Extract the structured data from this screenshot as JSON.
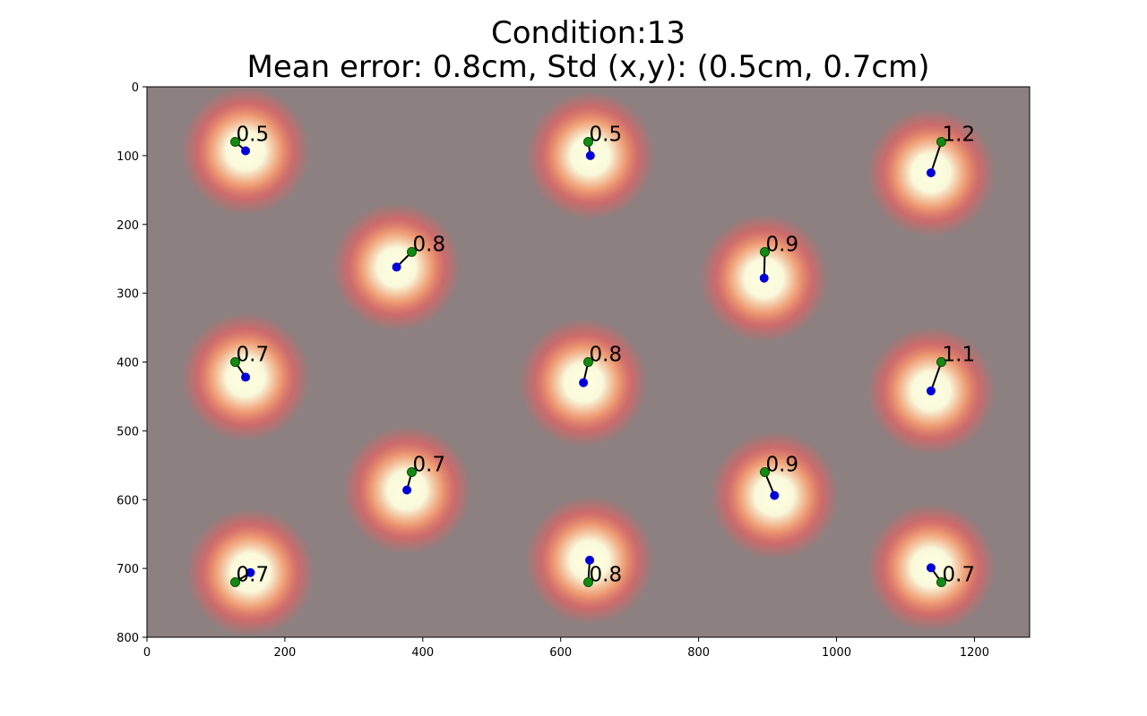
{
  "title": "Condition:13",
  "subtitle": "Mean error: 0.8cm, Std (x,y): (0.5cm, 0.7cm)",
  "colors": {
    "background": "#8c8080",
    "target": "#138a13",
    "gaze": "#0000dd",
    "line": "#000000",
    "heat_hot": "#ffffe0",
    "heat_mid": "#ff5a5a"
  },
  "chart_data": {
    "type": "scatter",
    "title": "Condition:13",
    "subtitle": "Mean error: 0.8cm, Std (x,y): (0.5cm, 0.7cm)",
    "xlim": [
      0,
      1280
    ],
    "ylim": [
      800,
      0
    ],
    "y_inverted": true,
    "xticks": [
      "0",
      "200",
      "400",
      "600",
      "800",
      "1000",
      "1200"
    ],
    "yticks": [
      "0",
      "100",
      "200",
      "300",
      "400",
      "500",
      "600",
      "700",
      "800"
    ],
    "grid": false,
    "background": "heatmap of gaze density",
    "points": [
      {
        "target": [
          128,
          80
        ],
        "gaze": [
          143,
          93
        ],
        "error": "0.5"
      },
      {
        "target": [
          640,
          80
        ],
        "gaze": [
          643,
          100
        ],
        "error": "0.5"
      },
      {
        "target": [
          1152,
          80
        ],
        "gaze": [
          1137,
          125
        ],
        "error": "1.2"
      },
      {
        "target": [
          384,
          240
        ],
        "gaze": [
          362,
          262
        ],
        "error": "0.8"
      },
      {
        "target": [
          896,
          240
        ],
        "gaze": [
          895,
          278
        ],
        "error": "0.9"
      },
      {
        "target": [
          128,
          400
        ],
        "gaze": [
          143,
          422
        ],
        "error": "0.7"
      },
      {
        "target": [
          640,
          400
        ],
        "gaze": [
          633,
          430
        ],
        "error": "0.8"
      },
      {
        "target": [
          1152,
          400
        ],
        "gaze": [
          1137,
          442
        ],
        "error": "1.1"
      },
      {
        "target": [
          384,
          560
        ],
        "gaze": [
          377,
          586
        ],
        "error": "0.7"
      },
      {
        "target": [
          896,
          560
        ],
        "gaze": [
          910,
          594
        ],
        "error": "0.9"
      },
      {
        "target": [
          128,
          720
        ],
        "gaze": [
          150,
          706
        ],
        "error": "0.7"
      },
      {
        "target": [
          640,
          720
        ],
        "gaze": [
          642,
          688
        ],
        "error": "0.8"
      },
      {
        "target": [
          1152,
          720
        ],
        "gaze": [
          1137,
          699
        ],
        "error": "0.7"
      }
    ]
  }
}
